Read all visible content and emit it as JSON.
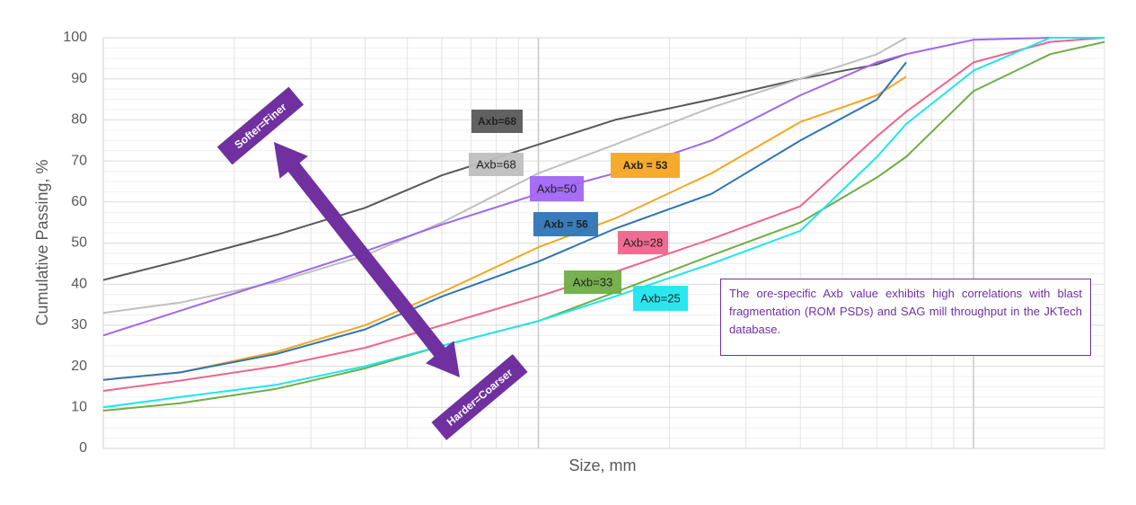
{
  "chart_data": {
    "type": "line",
    "xlabel": "Size, mm",
    "ylabel": "Cumulative Passing, %",
    "xscale": "log",
    "xlim": [
      1,
      200
    ],
    "ylim": [
      0,
      100
    ],
    "yticks": [
      0,
      10,
      20,
      30,
      40,
      50,
      60,
      70,
      80,
      90,
      100
    ],
    "grid": true,
    "x": [
      1,
      1.5,
      2.5,
      4,
      6,
      10,
      15,
      25,
      40,
      60,
      70,
      100,
      150,
      200
    ],
    "series": [
      {
        "name": "Axb=68",
        "color": "#595959",
        "values": [
          41,
          45.7,
          52,
          58.6,
          66.5,
          74,
          80,
          85,
          90,
          93.5,
          96,
          null,
          null,
          null
        ]
      },
      {
        "name": "Axb=68",
        "color": "#bfbfbf",
        "values": [
          33,
          35.5,
          40.5,
          47,
          55,
          67,
          74,
          83,
          90,
          96,
          100,
          null,
          null,
          null
        ]
      },
      {
        "name": "Axb=50",
        "color": "#a066f2",
        "values": [
          27.5,
          33.5,
          41,
          48,
          54.5,
          62,
          67,
          75,
          86,
          94,
          96,
          99.5,
          100,
          100
        ]
      },
      {
        "name": "Axb = 53",
        "color": "#f5a623",
        "values": [
          16.7,
          18.5,
          23.5,
          30,
          38,
          49,
          56,
          67,
          79.5,
          86,
          90.5,
          null,
          null,
          null
        ]
      },
      {
        "name": "Axb = 56",
        "color": "#2e75b6",
        "values": [
          16.7,
          18.5,
          23,
          29,
          37,
          45.5,
          53.5,
          62,
          75,
          85,
          94,
          null,
          null,
          null
        ]
      },
      {
        "name": "Axb=28",
        "color": "#f0648c",
        "values": [
          14,
          16.5,
          20,
          24.5,
          30,
          37,
          43,
          51,
          59,
          76,
          82,
          94,
          99,
          100
        ]
      },
      {
        "name": "Axb=33",
        "color": "#70ad47",
        "values": [
          9.2,
          11,
          14.5,
          19.5,
          25,
          31,
          38,
          47,
          55,
          66,
          71,
          87,
          96,
          99
        ]
      },
      {
        "name": "Axb=25",
        "color": "#1de6ee",
        "values": [
          10,
          12.5,
          15.5,
          20,
          25,
          31,
          37,
          45,
          53,
          71,
          79,
          92,
          100,
          100
        ]
      }
    ],
    "annotations": {
      "note": "The ore-specific Axb value exhibits high correlations with blast fragmentation (ROM PSDs) and SAG mill throughput in the JKTech database.",
      "softer": "Softer=Finer",
      "harder": "Harder=Coarser"
    }
  }
}
